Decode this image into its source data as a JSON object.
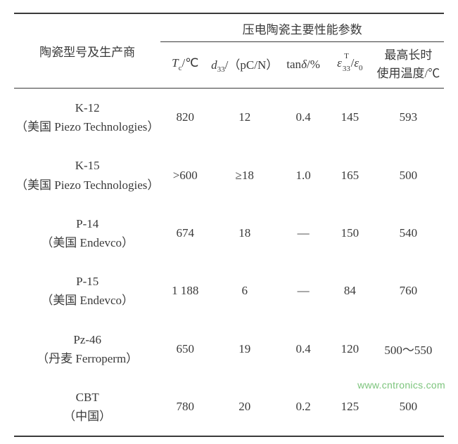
{
  "headers": {
    "row_header": "陶瓷型号及生产商",
    "group_header": "压电陶瓷主要性能参数",
    "tc_html": "<span class=\"italic\">T</span><span class=\"sub\">c</span>/℃",
    "d33_html": "<span class=\"italic\">d</span><span class=\"sub\">33</span>/（pC/N）",
    "tand_html": "tan<span class=\"italic\">δ</span>/%",
    "eps_html": "<span class=\"epsilon-frac\"><span class=\"italic\">ε</span><span class=\"e-sup\">T</span><span class=\"e-sub\">33</span></span>&nbsp;&nbsp;&nbsp;/<span class=\"italic\">ε</span><span class=\"sub\">0</span>",
    "maxtemp_line1": "最高长时",
    "maxtemp_line2": "使用温度/℃"
  },
  "rows": [
    {
      "model": "K-12",
      "maker": "（美国 Piezo Technologies）",
      "tc": "820",
      "d33": "12",
      "tand": "0.4",
      "eps": "145",
      "maxtemp": "593"
    },
    {
      "model": "K-15",
      "maker": "（美国 Piezo Technologies）",
      "tc": ">600",
      "d33": "≥18",
      "tand": "1.0",
      "eps": "165",
      "maxtemp": "500"
    },
    {
      "model": "P-14",
      "maker": "（美国 Endevco）",
      "tc": "674",
      "d33": "18",
      "tand": "—",
      "eps": "150",
      "maxtemp": "540"
    },
    {
      "model": "P-15",
      "maker": "（美国 Endevco）",
      "tc": "1 188",
      "d33": "6",
      "tand": "—",
      "eps": "84",
      "maxtemp": "760"
    },
    {
      "model": "Pz-46",
      "maker": "（丹麦 Ferroperm）",
      "tc": "650",
      "d33": "19",
      "tand": "0.4",
      "eps": "120",
      "maxtemp": "500～550"
    },
    {
      "model": "CBT",
      "maker": "（中国）",
      "tc": "780",
      "d33": "20",
      "tand": "0.2",
      "eps": "125",
      "maxtemp": "500"
    }
  ],
  "watermark": "www.cntronics.com",
  "style": {
    "background": "#ffffff",
    "text_color": "#3a3a3a",
    "border_color": "#3a3a3a",
    "watermark_color": "#7cc47c",
    "font_family": "SimSun, 宋体, serif",
    "base_font_size": 17
  }
}
